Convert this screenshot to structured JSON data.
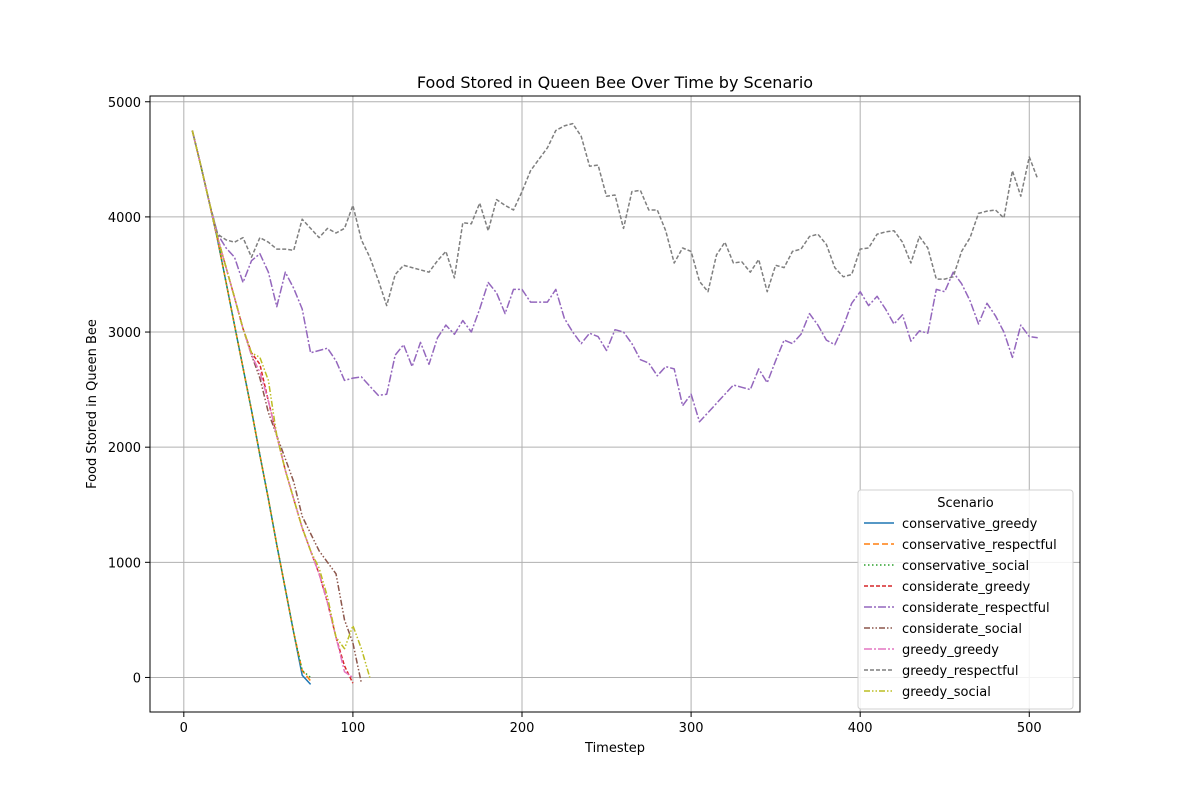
{
  "chart_data": {
    "type": "line",
    "title": "Food Stored in Queen Bee Over Time by Scenario",
    "xlabel": "Timestep",
    "ylabel": "Food Stored in Queen Bee",
    "xlim": [
      -20,
      530
    ],
    "ylim": [
      -300,
      5050
    ],
    "xticks": [
      0,
      100,
      200,
      300,
      400,
      500
    ],
    "yticks": [
      0,
      1000,
      2000,
      3000,
      4000,
      5000
    ],
    "grid": true,
    "legend": {
      "title": "Scenario",
      "placement": "bottom-right"
    },
    "series": [
      {
        "name": "conservative_greedy",
        "color": "#1f77b4",
        "dash": "",
        "x": [
          5,
          10,
          15,
          20,
          25,
          30,
          35,
          40,
          45,
          50,
          55,
          60,
          65,
          70,
          75
        ],
        "y": [
          4750,
          4450,
          4130,
          3800,
          3430,
          3060,
          2690,
          2320,
          1930,
          1550,
          1150,
          770,
          390,
          20,
          -60
        ]
      },
      {
        "name": "conservative_respectful",
        "color": "#ff7f0e",
        "dash": "6,3",
        "x": [
          5,
          10,
          15,
          20,
          25,
          30,
          35,
          40,
          45,
          50,
          55,
          60,
          65,
          70,
          75
        ],
        "y": [
          4750,
          4450,
          4130,
          3800,
          3430,
          3060,
          2690,
          2320,
          1930,
          1550,
          1150,
          770,
          390,
          60,
          -30
        ]
      },
      {
        "name": "conservative_social",
        "color": "#2ca02c",
        "dash": "1.5,2.5",
        "x": [
          5,
          10,
          15,
          20,
          25,
          30,
          35,
          40,
          45,
          50,
          55,
          60,
          65,
          70,
          75
        ],
        "y": [
          4750,
          4450,
          4130,
          3800,
          3430,
          3060,
          2690,
          2320,
          1930,
          1550,
          1150,
          770,
          390,
          60,
          0
        ]
      },
      {
        "name": "considerate_greedy",
        "color": "#d62728",
        "dash": "4,2",
        "x": [
          5,
          10,
          15,
          20,
          25,
          30,
          35,
          40,
          45,
          50,
          55,
          60,
          65,
          70,
          75,
          80,
          85,
          90,
          95,
          100
        ],
        "y": [
          4750,
          4450,
          4130,
          3820,
          3560,
          3300,
          3030,
          2820,
          2720,
          2400,
          2100,
          1800,
          1550,
          1300,
          1100,
          900,
          650,
          350,
          100,
          -50
        ]
      },
      {
        "name": "considerate_respectful",
        "color": "#9467bd",
        "dash": "8,2,2,2",
        "x": [
          5,
          10,
          15,
          20,
          25,
          30,
          35,
          40,
          45,
          50,
          55,
          60,
          65,
          70,
          75,
          80,
          85,
          90,
          95,
          100,
          105,
          110,
          115,
          120,
          125,
          130,
          135,
          140,
          145,
          150,
          155,
          160,
          165,
          170,
          175,
          180,
          185,
          190,
          195,
          200,
          205,
          210,
          215,
          220,
          225,
          230,
          235,
          240,
          245,
          250,
          255,
          260,
          265,
          270,
          275,
          280,
          285,
          290,
          295,
          300,
          305,
          310,
          315,
          320,
          325,
          330,
          335,
          340,
          345,
          350,
          355,
          360,
          365,
          370,
          375,
          380,
          385,
          390,
          395,
          400,
          405,
          410,
          415,
          420,
          425,
          430,
          435,
          440,
          445,
          450,
          455,
          460,
          465,
          470,
          475,
          480,
          485,
          490,
          495,
          500,
          505
        ],
        "y": [
          4750,
          4450,
          4130,
          3850,
          3730,
          3650,
          3430,
          3620,
          3680,
          3520,
          3220,
          3520,
          3380,
          3200,
          2820,
          2840,
          2860,
          2750,
          2580,
          2600,
          2610,
          2530,
          2450,
          2460,
          2800,
          2890,
          2700,
          2910,
          2720,
          2950,
          3060,
          2980,
          3100,
          3000,
          3200,
          3430,
          3340,
          3160,
          3370,
          3370,
          3260,
          3260,
          3260,
          3370,
          3120,
          3000,
          2900,
          2990,
          2960,
          2840,
          3020,
          3000,
          2900,
          2760,
          2730,
          2620,
          2700,
          2680,
          2360,
          2460,
          2220,
          2300,
          2380,
          2460,
          2540,
          2520,
          2500,
          2680,
          2560,
          2750,
          2930,
          2900,
          2980,
          3160,
          3060,
          2930,
          2890,
          3050,
          3250,
          3350,
          3230,
          3310,
          3200,
          3070,
          3150,
          2920,
          3010,
          2990,
          3370,
          3350,
          3520,
          3420,
          3270,
          3070,
          3250,
          3140,
          3000,
          2780,
          3060,
          2960,
          2950
        ]
      },
      {
        "name": "considerate_social",
        "color": "#8c564b",
        "dash": "6,2,1.5,2,1.5,2",
        "x": [
          5,
          10,
          15,
          20,
          25,
          30,
          35,
          40,
          45,
          50,
          55,
          60,
          65,
          70,
          75,
          80,
          85,
          90,
          95,
          100,
          105
        ],
        "y": [
          4750,
          4450,
          4130,
          3820,
          3560,
          3300,
          3030,
          2800,
          2600,
          2300,
          2100,
          1900,
          1700,
          1400,
          1250,
          1100,
          1000,
          900,
          500,
          300,
          -50
        ]
      },
      {
        "name": "greedy_greedy",
        "color": "#e377c2",
        "dash": "8,2,2,2",
        "x": [
          5,
          10,
          15,
          20,
          25,
          30,
          35,
          40,
          45,
          50,
          55,
          60,
          65,
          70,
          75,
          80,
          85,
          90,
          95,
          100
        ],
        "y": [
          4750,
          4450,
          4130,
          3820,
          3560,
          3300,
          3030,
          2800,
          2650,
          2400,
          2100,
          1800,
          1550,
          1300,
          1100,
          900,
          650,
          350,
          50,
          0
        ]
      },
      {
        "name": "greedy_respectful",
        "color": "#7f7f7f",
        "dash": "4,2",
        "x": [
          5,
          10,
          15,
          20,
          25,
          30,
          35,
          40,
          45,
          50,
          55,
          60,
          65,
          70,
          75,
          80,
          85,
          90,
          95,
          100,
          105,
          110,
          115,
          120,
          125,
          130,
          135,
          140,
          145,
          150,
          155,
          160,
          165,
          170,
          175,
          180,
          185,
          190,
          195,
          200,
          205,
          210,
          215,
          220,
          225,
          230,
          235,
          240,
          245,
          250,
          255,
          260,
          265,
          270,
          275,
          280,
          285,
          290,
          295,
          300,
          305,
          310,
          315,
          320,
          325,
          330,
          335,
          340,
          345,
          350,
          355,
          360,
          365,
          370,
          375,
          380,
          385,
          390,
          395,
          400,
          405,
          410,
          415,
          420,
          425,
          430,
          435,
          440,
          445,
          450,
          455,
          460,
          465,
          470,
          475,
          480,
          485,
          490,
          495,
          500,
          505
        ],
        "y": [
          4750,
          4450,
          4130,
          3850,
          3800,
          3780,
          3820,
          3650,
          3820,
          3780,
          3720,
          3720,
          3710,
          3980,
          3900,
          3820,
          3900,
          3860,
          3900,
          4100,
          3800,
          3650,
          3450,
          3230,
          3500,
          3580,
          3560,
          3540,
          3520,
          3620,
          3700,
          3470,
          3950,
          3940,
          4120,
          3880,
          4150,
          4100,
          4060,
          4220,
          4400,
          4500,
          4600,
          4750,
          4790,
          4810,
          4700,
          4440,
          4450,
          4180,
          4190,
          3900,
          4220,
          4230,
          4060,
          4060,
          3880,
          3600,
          3730,
          3700,
          3440,
          3350,
          3670,
          3780,
          3600,
          3610,
          3520,
          3630,
          3350,
          3580,
          3560,
          3700,
          3720,
          3830,
          3850,
          3760,
          3560,
          3480,
          3500,
          3720,
          3730,
          3850,
          3870,
          3880,
          3780,
          3600,
          3830,
          3730,
          3460,
          3460,
          3480,
          3700,
          3820,
          4030,
          4050,
          4060,
          3990,
          4400,
          4180,
          4520,
          4330
        ]
      },
      {
        "name": "greedy_social",
        "color": "#bcbd22",
        "dash": "6,2,1.5,2,1.5,2",
        "x": [
          5,
          10,
          15,
          20,
          25,
          30,
          35,
          40,
          45,
          50,
          55,
          60,
          65,
          70,
          75,
          80,
          85,
          90,
          95,
          100,
          105,
          110
        ],
        "y": [
          4750,
          4450,
          4130,
          3820,
          3560,
          3300,
          3030,
          2820,
          2780,
          2580,
          2100,
          1800,
          1550,
          1300,
          1100,
          950,
          700,
          350,
          250,
          450,
          250,
          0
        ]
      }
    ]
  }
}
